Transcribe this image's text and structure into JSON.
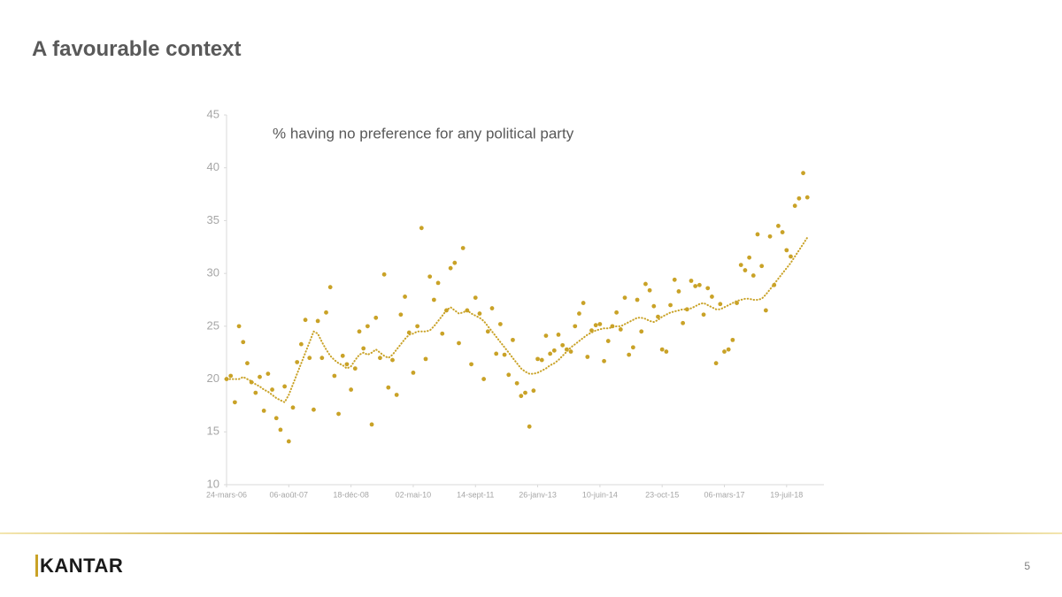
{
  "page": {
    "title": "A favourable context",
    "logo": "KANTAR",
    "page_number": "5"
  },
  "chart_data": {
    "type": "scatter",
    "annotation": "% having no preference for any political party",
    "x": [
      0,
      1,
      2,
      3,
      4,
      5,
      6,
      7,
      8,
      9,
      10,
      11,
      12,
      13,
      14,
      15,
      16,
      17,
      18,
      19,
      20,
      21,
      22,
      23,
      24,
      25,
      26,
      27,
      28,
      29,
      30,
      31,
      32,
      33,
      34,
      35,
      36,
      37,
      38,
      39,
      40,
      41,
      42,
      43,
      44,
      45,
      46,
      47,
      48,
      49,
      50,
      51,
      52,
      53,
      54,
      55,
      56,
      57,
      58,
      59,
      60,
      61,
      62,
      63,
      64,
      65,
      66,
      67,
      68,
      69,
      70,
      71,
      72,
      73,
      74,
      75,
      76,
      77,
      78,
      79,
      80,
      81,
      82,
      83,
      84,
      85,
      86,
      87,
      88,
      89,
      90,
      91,
      92,
      93,
      94,
      95,
      96,
      97,
      98,
      99,
      100,
      101,
      102,
      103,
      104,
      105,
      106,
      107,
      108,
      109,
      110,
      111,
      112,
      113,
      114,
      115,
      116,
      117,
      118,
      119,
      120,
      121,
      122,
      123,
      124,
      125,
      126,
      127,
      128,
      129,
      130,
      131,
      132,
      133,
      134,
      135,
      136,
      137,
      138,
      139,
      140
    ],
    "series": [
      {
        "style": "points",
        "color": "#c9a227",
        "values": [
          20,
          20.3,
          17.8,
          25,
          23.5,
          21.5,
          19.7,
          18.7,
          20.2,
          17,
          20.5,
          19,
          16.3,
          15.2,
          19.3,
          14.1,
          17.3,
          21.6,
          23.3,
          25.6,
          22,
          17.1,
          25.5,
          22,
          26.3,
          28.7,
          20.3,
          16.7,
          22.2,
          21.4,
          19,
          21,
          24.5,
          22.9,
          25,
          15.7,
          25.8,
          22,
          29.9,
          19.2,
          21.8,
          18.5,
          26.1,
          27.8,
          24.4,
          20.6,
          25,
          34.3,
          21.9,
          29.7,
          27.5,
          29.1,
          24.3,
          26.5,
          30.5,
          31,
          23.4,
          32.4,
          26.5,
          21.4,
          27.7,
          26.2,
          20,
          24.5,
          26.7,
          22.4,
          25.2,
          22.3,
          20.4,
          23.7,
          19.6,
          18.4,
          18.7,
          15.5,
          18.9,
          21.9,
          21.8,
          24.1,
          22.4,
          22.7,
          24.2,
          23.2,
          22.8,
          22.6,
          25,
          26.2,
          27.2,
          22.1,
          24.6,
          25.1,
          25.2,
          21.7,
          23.6,
          25,
          26.3,
          24.7,
          27.7,
          22.3,
          23,
          27.5,
          24.5,
          29,
          28.4,
          26.9,
          25.9,
          22.8,
          22.6,
          27,
          29.4,
          28.3,
          25.3,
          26.6,
          29.3,
          28.8,
          28.9,
          26.1,
          28.6,
          27.8,
          21.5,
          27.1,
          22.6,
          22.8,
          23.7,
          27.2,
          30.8,
          30.3,
          31.5,
          29.8,
          33.7,
          30.7,
          26.5,
          33.5,
          28.9,
          34.5,
          33.9,
          32.2,
          31.6,
          36.4,
          37.1,
          39.5,
          37.2
        ]
      },
      {
        "style": "dotted",
        "color": "#c9a227",
        "values": [
          20,
          20,
          20,
          20,
          20.2,
          20,
          19.8,
          19.5,
          19.3,
          19,
          18.8,
          18.5,
          18.2,
          18,
          17.8,
          18.5,
          19.5,
          20.5,
          21.5,
          22.5,
          23.5,
          24.5,
          24.3,
          23.5,
          22.8,
          22.2,
          21.8,
          21.5,
          21.3,
          21,
          21.2,
          21.8,
          22.3,
          22.5,
          22.3,
          22.5,
          22.8,
          22.5,
          22.2,
          22,
          22.3,
          22.8,
          23.3,
          23.8,
          24.2,
          24.3,
          24.5,
          24.5,
          24.5,
          24.6,
          25,
          25.5,
          26,
          26.5,
          26.8,
          26.5,
          26.2,
          26.3,
          26.5,
          26.2,
          26,
          25.8,
          25.5,
          25,
          24.5,
          24,
          23.5,
          23,
          22.5,
          22,
          21.5,
          21,
          20.7,
          20.5,
          20.5,
          20.6,
          20.8,
          21,
          21.3,
          21.5,
          21.8,
          22.2,
          22.6,
          23,
          23.3,
          23.6,
          23.9,
          24.2,
          24.4,
          24.6,
          24.7,
          24.8,
          24.8,
          24.9,
          25,
          25,
          25.2,
          25.4,
          25.6,
          25.8,
          25.8,
          25.7,
          25.5,
          25.4,
          25.6,
          25.9,
          26.1,
          26.3,
          26.4,
          26.5,
          26.6,
          26.6,
          26.7,
          26.9,
          27.1,
          27.2,
          27,
          26.8,
          26.6,
          26.6,
          26.8,
          27,
          27.2,
          27.4,
          27.5,
          27.6,
          27.6,
          27.5,
          27.5,
          27.6,
          28,
          28.5,
          29,
          29.5,
          30,
          30.5,
          31,
          31.6,
          32.2,
          32.8,
          33.4
        ]
      }
    ],
    "xlim": [
      0,
      144
    ],
    "xticks": [
      {
        "value": 0,
        "label": "24-mars-06"
      },
      {
        "value": 15,
        "label": "06-août-07"
      },
      {
        "value": 30,
        "label": "18-déc-08"
      },
      {
        "value": 45,
        "label": "02-mai-10"
      },
      {
        "value": 60,
        "label": "14-sept-11"
      },
      {
        "value": 75,
        "label": "26-janv-13"
      },
      {
        "value": 90,
        "label": "10-juin-14"
      },
      {
        "value": 105,
        "label": "23-oct-15"
      },
      {
        "value": 120,
        "label": "06-mars-17"
      },
      {
        "value": 135,
        "label": "19-juil-18"
      }
    ],
    "ylim": [
      10,
      45
    ],
    "yticks": [
      10,
      15,
      20,
      25,
      30,
      35,
      40,
      45
    ],
    "grid": false
  }
}
